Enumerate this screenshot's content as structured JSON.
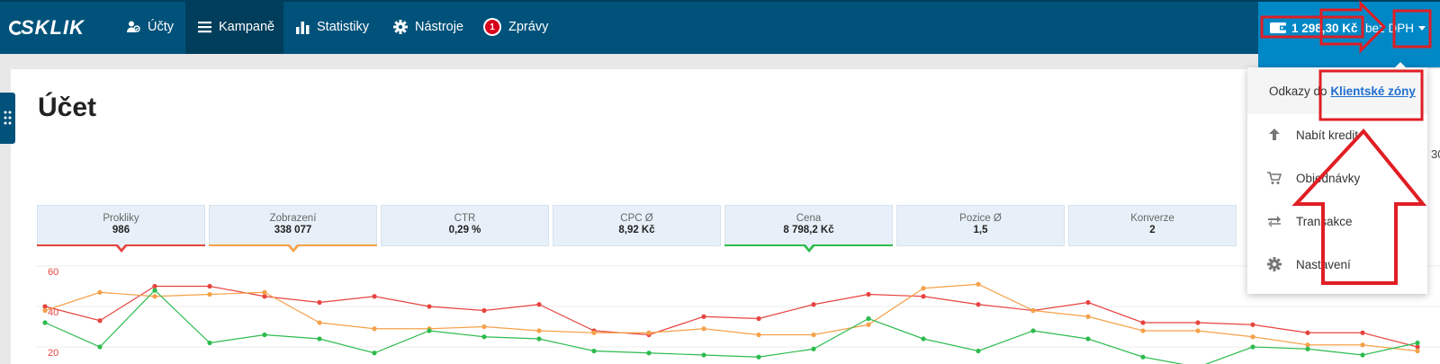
{
  "logo": {
    "text": "SKLIK"
  },
  "nav": {
    "items": [
      {
        "label": "Účty",
        "icon": "accounts-icon"
      },
      {
        "label": "Kampaně",
        "icon": "menu-icon",
        "active": true
      },
      {
        "label": "Statistiky",
        "icon": "bar-chart-icon"
      },
      {
        "label": "Nástroje",
        "icon": "gear-icon"
      },
      {
        "label": "Zprávy",
        "icon": "notification-badge",
        "badge": "1"
      }
    ]
  },
  "credit": {
    "amount": "1 298,30 Kč",
    "suffix": "bez DPH",
    "icon": "wallet-icon"
  },
  "page": {
    "title": "Účet",
    "edge_fragment": "30"
  },
  "metrics": [
    {
      "label": "Prokliky",
      "value": "986",
      "accent": "#e6443f",
      "selected": true
    },
    {
      "label": "Zobrazení",
      "value": "338 077",
      "accent": "#f5a14a",
      "selected": true
    },
    {
      "label": "CTR",
      "value": "0,29 %"
    },
    {
      "label": "CPC Ø",
      "value": "8,92 Kč"
    },
    {
      "label": "Cena",
      "value": "8 798,2 Kč",
      "accent": "#2dbb4e",
      "selected": true
    },
    {
      "label": "Pozice Ø",
      "value": "1,5"
    },
    {
      "label": "Konverze",
      "value": "2"
    }
  ],
  "chart_data": {
    "type": "line",
    "y_ticks": [
      "60",
      "40",
      "20"
    ],
    "ylim": [
      20,
      60
    ],
    "grid": true,
    "series": [
      {
        "name": "Prokliky",
        "color": "#e6443f",
        "values": [
          40,
          33,
          50,
          50,
          45,
          42,
          45,
          40,
          38,
          41,
          28,
          26,
          35,
          34,
          41,
          46,
          45,
          41,
          38,
          42,
          32,
          32,
          31,
          27,
          27,
          20
        ]
      },
      {
        "name": "Zobrazení",
        "color": "#f5a14a",
        "values": [
          38,
          47,
          45,
          46,
          47,
          32,
          29,
          29,
          30,
          28,
          27,
          27,
          29,
          26,
          26,
          31,
          49,
          51,
          38,
          35,
          28,
          28,
          25,
          21,
          21,
          18
        ]
      },
      {
        "name": "Cena",
        "color": "#2dbb4e",
        "values": [
          32,
          20,
          48,
          22,
          26,
          24,
          17,
          28,
          25,
          24,
          18,
          17,
          16,
          15,
          19,
          34,
          24,
          18,
          28,
          24,
          15,
          10,
          20,
          19,
          16,
          22
        ]
      }
    ]
  },
  "dropdown": {
    "header_prefix": "Odkazy do",
    "header_link": "Klientské zóny",
    "items": [
      {
        "label": "Nabít kredit",
        "icon": "upload-arrow-icon"
      },
      {
        "label": "Objednávky",
        "icon": "cart-icon"
      },
      {
        "label": "Transakce",
        "icon": "transfer-arrows-icon"
      },
      {
        "label": "Nastavení",
        "icon": "gear-icon"
      }
    ]
  }
}
